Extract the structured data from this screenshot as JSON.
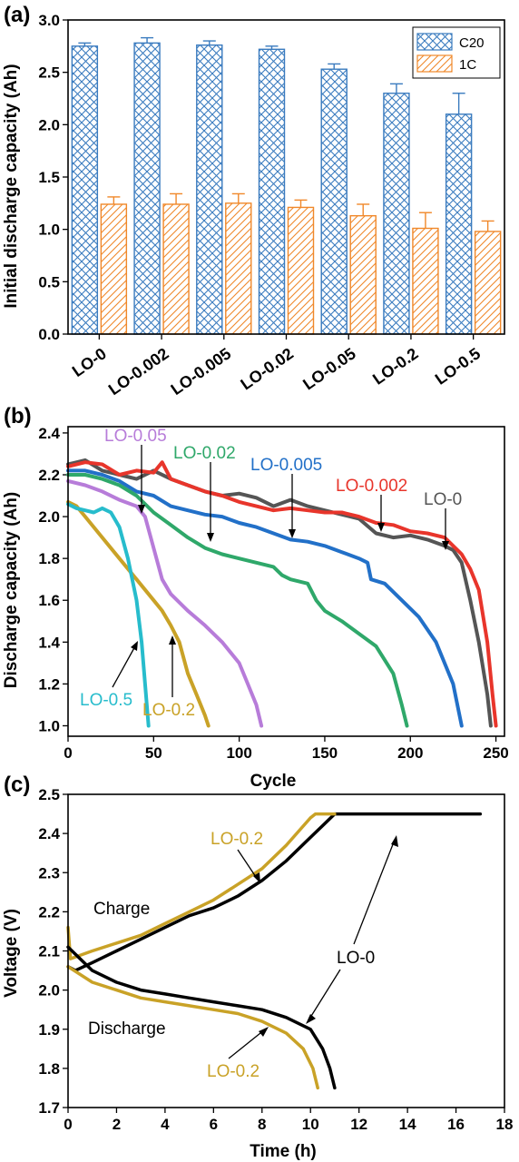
{
  "chart_data": [
    {
      "panel": "(a)",
      "type": "bar",
      "ylabel": "Initial discharge capacity (Ah)",
      "ylim": [
        0,
        3.0
      ],
      "yticks": [
        "0.0",
        "0.5",
        "1.0",
        "1.5",
        "2.0",
        "2.5",
        "3.0"
      ],
      "categories": [
        "LO-0",
        "LO-0.002",
        "LO-0.005",
        "LO-0.02",
        "LO-0.05",
        "LO-0.2",
        "LO-0.5"
      ],
      "legend_position": "top-right",
      "series": [
        {
          "name": "C20",
          "color": "#3a7bbf",
          "values": [
            2.75,
            2.78,
            2.76,
            2.72,
            2.53,
            2.3,
            2.1
          ],
          "errors": [
            0.03,
            0.05,
            0.04,
            0.03,
            0.05,
            0.09,
            0.2
          ]
        },
        {
          "name": "1C",
          "color": "#f0882a",
          "values": [
            1.24,
            1.24,
            1.25,
            1.21,
            1.13,
            1.01,
            0.98
          ],
          "errors": [
            0.07,
            0.1,
            0.09,
            0.07,
            0.11,
            0.15,
            0.1
          ]
        }
      ]
    },
    {
      "panel": "(b)",
      "type": "line",
      "xlabel": "Cycle",
      "ylabel": "Discharge capacity (Ah)",
      "xlim": [
        0,
        255
      ],
      "ylim": [
        0.95,
        2.43
      ],
      "xticks": [
        "0",
        "50",
        "100",
        "150",
        "200",
        "250"
      ],
      "yticks": [
        "1.0",
        "1.2",
        "1.4",
        "1.6",
        "1.8",
        "2.0",
        "2.2",
        "2.4"
      ],
      "series": [
        {
          "name": "LO-0",
          "color": "#555555",
          "points": [
            [
              0,
              2.25
            ],
            [
              10,
              2.27
            ],
            [
              20,
              2.22
            ],
            [
              30,
              2.2
            ],
            [
              40,
              2.18
            ],
            [
              50,
              2.22
            ],
            [
              60,
              2.18
            ],
            [
              70,
              2.15
            ],
            [
              80,
              2.12
            ],
            [
              90,
              2.1
            ],
            [
              100,
              2.11
            ],
            [
              110,
              2.09
            ],
            [
              120,
              2.05
            ],
            [
              130,
              2.08
            ],
            [
              140,
              2.05
            ],
            [
              150,
              2.03
            ],
            [
              160,
              2.01
            ],
            [
              170,
              1.99
            ],
            [
              180,
              1.92
            ],
            [
              190,
              1.9
            ],
            [
              200,
              1.91
            ],
            [
              210,
              1.89
            ],
            [
              220,
              1.86
            ],
            [
              225,
              1.84
            ],
            [
              230,
              1.78
            ],
            [
              235,
              1.6
            ],
            [
              240,
              1.4
            ],
            [
              245,
              1.15
            ],
            [
              247,
              1.0
            ]
          ]
        },
        {
          "name": "LO-0.002",
          "color": "#e8352b",
          "points": [
            [
              0,
              2.24
            ],
            [
              10,
              2.26
            ],
            [
              20,
              2.25
            ],
            [
              30,
              2.2
            ],
            [
              40,
              2.22
            ],
            [
              50,
              2.21
            ],
            [
              55,
              2.26
            ],
            [
              60,
              2.18
            ],
            [
              70,
              2.15
            ],
            [
              80,
              2.12
            ],
            [
              90,
              2.1
            ],
            [
              100,
              2.07
            ],
            [
              110,
              2.05
            ],
            [
              120,
              2.03
            ],
            [
              130,
              2.04
            ],
            [
              140,
              2.03
            ],
            [
              150,
              2.02
            ],
            [
              160,
              2.02
            ],
            [
              170,
              2.0
            ],
            [
              180,
              1.97
            ],
            [
              190,
              1.96
            ],
            [
              200,
              1.93
            ],
            [
              210,
              1.92
            ],
            [
              220,
              1.9
            ],
            [
              230,
              1.82
            ],
            [
              235,
              1.75
            ],
            [
              240,
              1.65
            ],
            [
              245,
              1.4
            ],
            [
              248,
              1.15
            ],
            [
              250,
              1.0
            ]
          ]
        },
        {
          "name": "LO-0.005",
          "color": "#2270c8",
          "points": [
            [
              0,
              2.22
            ],
            [
              10,
              2.22
            ],
            [
              20,
              2.2
            ],
            [
              30,
              2.17
            ],
            [
              40,
              2.12
            ],
            [
              50,
              2.1
            ],
            [
              60,
              2.05
            ],
            [
              70,
              2.03
            ],
            [
              80,
              2.01
            ],
            [
              90,
              2.0
            ],
            [
              100,
              1.97
            ],
            [
              110,
              1.95
            ],
            [
              120,
              1.92
            ],
            [
              130,
              1.89
            ],
            [
              140,
              1.88
            ],
            [
              150,
              1.86
            ],
            [
              160,
              1.83
            ],
            [
              170,
              1.8
            ],
            [
              175,
              1.78
            ],
            [
              177,
              1.7
            ],
            [
              185,
              1.68
            ],
            [
              195,
              1.6
            ],
            [
              205,
              1.52
            ],
            [
              215,
              1.4
            ],
            [
              225,
              1.2
            ],
            [
              230,
              1.0
            ]
          ]
        },
        {
          "name": "LO-0.02",
          "color": "#2fa86a",
          "points": [
            [
              0,
              2.2
            ],
            [
              10,
              2.2
            ],
            [
              20,
              2.18
            ],
            [
              30,
              2.15
            ],
            [
              40,
              2.1
            ],
            [
              50,
              2.02
            ],
            [
              60,
              1.96
            ],
            [
              70,
              1.9
            ],
            [
              80,
              1.85
            ],
            [
              90,
              1.82
            ],
            [
              100,
              1.8
            ],
            [
              110,
              1.78
            ],
            [
              120,
              1.76
            ],
            [
              125,
              1.72
            ],
            [
              130,
              1.7
            ],
            [
              140,
              1.68
            ],
            [
              145,
              1.6
            ],
            [
              150,
              1.55
            ],
            [
              160,
              1.5
            ],
            [
              170,
              1.44
            ],
            [
              180,
              1.38
            ],
            [
              190,
              1.25
            ],
            [
              195,
              1.1
            ],
            [
              198,
              1.0
            ]
          ]
        },
        {
          "name": "LO-0.05",
          "color": "#b77cd9",
          "points": [
            [
              0,
              2.17
            ],
            [
              10,
              2.15
            ],
            [
              20,
              2.12
            ],
            [
              30,
              2.08
            ],
            [
              40,
              2.05
            ],
            [
              45,
              2.0
            ],
            [
              50,
              1.85
            ],
            [
              55,
              1.7
            ],
            [
              60,
              1.63
            ],
            [
              70,
              1.55
            ],
            [
              80,
              1.48
            ],
            [
              90,
              1.4
            ],
            [
              100,
              1.3
            ],
            [
              105,
              1.2
            ],
            [
              110,
              1.1
            ],
            [
              113,
              1.0
            ]
          ]
        },
        {
          "name": "LO-0.2",
          "color": "#c9a227",
          "points": [
            [
              0,
              2.07
            ],
            [
              5,
              2.05
            ],
            [
              10,
              2.0
            ],
            [
              15,
              1.95
            ],
            [
              20,
              1.9
            ],
            [
              30,
              1.8
            ],
            [
              40,
              1.7
            ],
            [
              50,
              1.6
            ],
            [
              55,
              1.55
            ],
            [
              60,
              1.48
            ],
            [
              65,
              1.4
            ],
            [
              70,
              1.25
            ],
            [
              75,
              1.15
            ],
            [
              80,
              1.05
            ],
            [
              82,
              1.0
            ]
          ]
        },
        {
          "name": "LO-0.5",
          "color": "#27bccc",
          "points": [
            [
              0,
              2.06
            ],
            [
              5,
              2.04
            ],
            [
              10,
              2.03
            ],
            [
              15,
              2.02
            ],
            [
              20,
              2.04
            ],
            [
              25,
              2.02
            ],
            [
              30,
              1.95
            ],
            [
              35,
              1.8
            ],
            [
              40,
              1.6
            ],
            [
              43,
              1.4
            ],
            [
              45,
              1.2
            ],
            [
              47,
              1.0
            ]
          ]
        }
      ],
      "annotations": [
        {
          "text": "LO-0",
          "color": "#555555"
        },
        {
          "text": "LO-0.002",
          "color": "#e8352b"
        },
        {
          "text": "LO-0.005",
          "color": "#2270c8"
        },
        {
          "text": "LO-0.02",
          "color": "#2fa86a"
        },
        {
          "text": "LO-0.05",
          "color": "#b77cd9"
        },
        {
          "text": "LO-0.2",
          "color": "#c9a227"
        },
        {
          "text": "LO-0.5",
          "color": "#27bccc"
        }
      ]
    },
    {
      "panel": "(c)",
      "type": "line",
      "xlabel": "Time (h)",
      "ylabel": "Voltage (V)",
      "xlim": [
        0,
        18
      ],
      "ylim": [
        1.7,
        2.5
      ],
      "xticks": [
        "0",
        "2",
        "4",
        "6",
        "8",
        "10",
        "12",
        "14",
        "16",
        "18"
      ],
      "yticks": [
        "1.7",
        "1.8",
        "1.9",
        "2.0",
        "2.1",
        "2.2",
        "2.3",
        "2.4",
        "2.5"
      ],
      "series": [
        {
          "name": "LO-0 charge",
          "color": "#000000",
          "points": [
            [
              0,
              2.06
            ],
            [
              0.3,
              2.05
            ],
            [
              1,
              2.07
            ],
            [
              2,
              2.1
            ],
            [
              3,
              2.13
            ],
            [
              4,
              2.16
            ],
            [
              5,
              2.19
            ],
            [
              6,
              2.21
            ],
            [
              7,
              2.24
            ],
            [
              8,
              2.28
            ],
            [
              9,
              2.33
            ],
            [
              10,
              2.39
            ],
            [
              10.5,
              2.42
            ],
            [
              11,
              2.45
            ],
            [
              17,
              2.45
            ]
          ]
        },
        {
          "name": "LO-0.2 charge",
          "color": "#c9a227",
          "points": [
            [
              0,
              2.16
            ],
            [
              0.1,
              2.08
            ],
            [
              1,
              2.1
            ],
            [
              2,
              2.12
            ],
            [
              3,
              2.14
            ],
            [
              4,
              2.17
            ],
            [
              5,
              2.2
            ],
            [
              6,
              2.23
            ],
            [
              7,
              2.27
            ],
            [
              8,
              2.31
            ],
            [
              9,
              2.37
            ],
            [
              10,
              2.44
            ],
            [
              10.2,
              2.45
            ],
            [
              11,
              2.45
            ]
          ]
        },
        {
          "name": "LO-0 discharge",
          "color": "#000000",
          "points": [
            [
              0,
              2.11
            ],
            [
              1,
              2.05
            ],
            [
              2,
              2.02
            ],
            [
              3,
              2.0
            ],
            [
              4,
              1.99
            ],
            [
              5,
              1.98
            ],
            [
              6,
              1.97
            ],
            [
              7,
              1.96
            ],
            [
              8,
              1.95
            ],
            [
              9,
              1.93
            ],
            [
              10,
              1.9
            ],
            [
              10.5,
              1.85
            ],
            [
              10.8,
              1.8
            ],
            [
              11,
              1.75
            ]
          ]
        },
        {
          "name": "LO-0.2 discharge",
          "color": "#c9a227",
          "points": [
            [
              0,
              2.06
            ],
            [
              1,
              2.02
            ],
            [
              2,
              2.0
            ],
            [
              3,
              1.98
            ],
            [
              4,
              1.97
            ],
            [
              5,
              1.96
            ],
            [
              6,
              1.95
            ],
            [
              7,
              1.94
            ],
            [
              8,
              1.92
            ],
            [
              9,
              1.89
            ],
            [
              9.7,
              1.85
            ],
            [
              10.1,
              1.8
            ],
            [
              10.3,
              1.75
            ]
          ]
        }
      ],
      "annotations": [
        {
          "text": "Charge",
          "color": "#000000"
        },
        {
          "text": "Discharge",
          "color": "#000000"
        },
        {
          "text": "LO-0.2",
          "color": "#c9a227"
        },
        {
          "text": "LO-0",
          "color": "#000000"
        },
        {
          "text": "LO-0.2",
          "color": "#c9a227"
        }
      ]
    }
  ]
}
